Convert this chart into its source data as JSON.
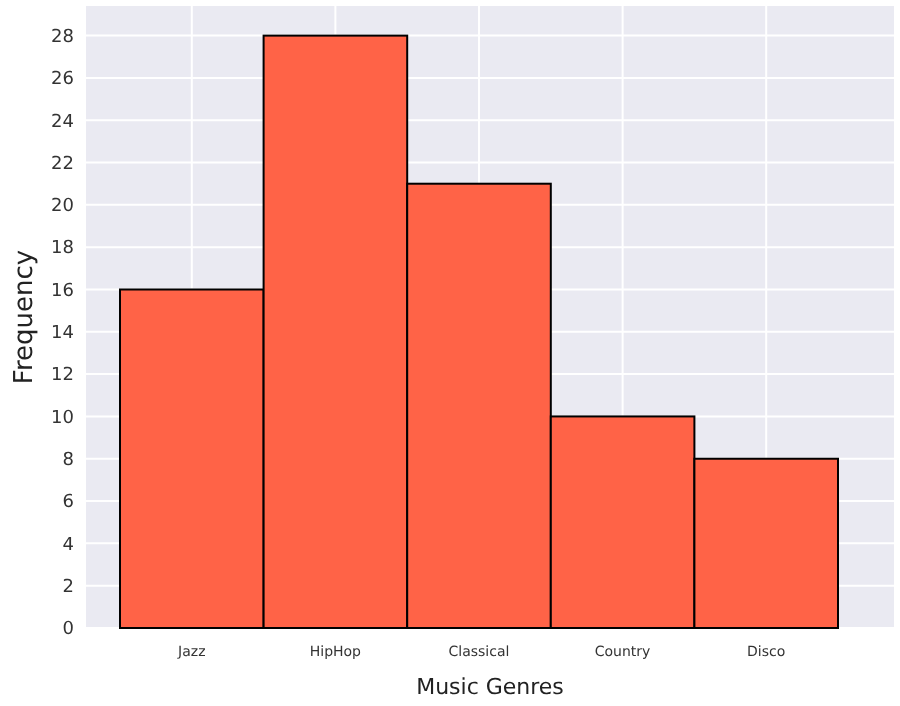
{
  "chart_data": {
    "type": "bar",
    "xlabel": "Music Genres",
    "ylabel": "Frequency",
    "categories": [
      "Jazz",
      "HipHop",
      "Classical",
      "Country",
      "Disco"
    ],
    "values": [
      16,
      28,
      21,
      10,
      8
    ],
    "color": "#ff6347",
    "ylim": [
      0,
      29.4
    ],
    "yticks": [
      0,
      2,
      4,
      6,
      8,
      10,
      12,
      14,
      16,
      18,
      20,
      22,
      24,
      26,
      28
    ],
    "grid": true
  }
}
